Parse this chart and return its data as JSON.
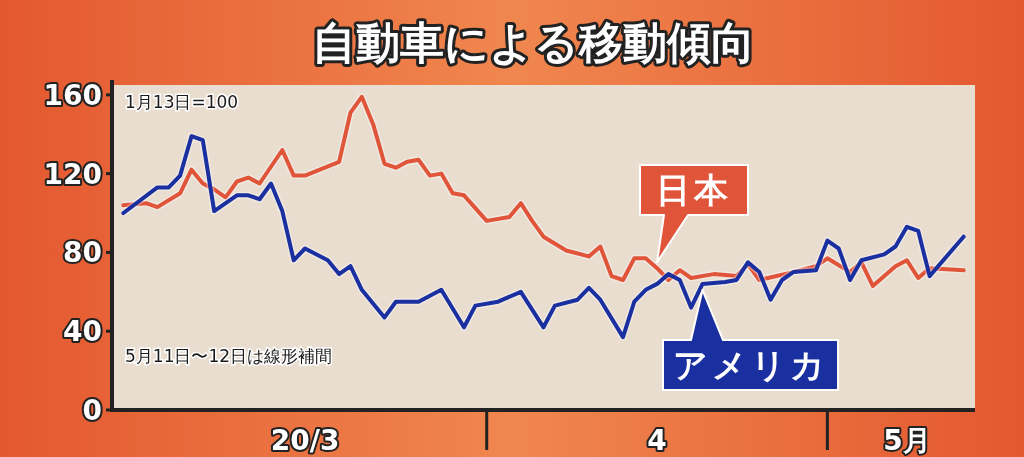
{
  "chart_data": {
    "type": "line",
    "title": "自動車による移動傾向",
    "annotations": [
      "1月13日=100",
      "5月11日〜12日は線形補間"
    ],
    "xlim": [
      "--02-28",
      "--05-14"
    ],
    "xticks": [
      {
        "value": "--03-16",
        "label": "20/3"
      },
      {
        "value": "--04-01",
        "label": null
      },
      {
        "value": "--04-16",
        "label": "4"
      },
      {
        "value": "--05-01",
        "label": null
      },
      {
        "value": "--05-08",
        "label": "5月"
      }
    ],
    "ylim": [
      0,
      165
    ],
    "yticks": [
      0,
      40,
      80,
      120,
      160
    ],
    "grid": false,
    "legend": false,
    "marker": "none",
    "line_style": "solid",
    "series": [
      {
        "name": "日本",
        "color": "#e0543a",
        "x": [
          "--02-29",
          "--03-02",
          "--03-03",
          "--03-05",
          "--03-06",
          "--03-07",
          "--03-08",
          "--03-09",
          "--03-10",
          "--03-11",
          "--03-12",
          "--03-14",
          "--03-15",
          "--03-16",
          "--03-19",
          "--03-20",
          "--03-21",
          "--03-22",
          "--03-23",
          "--03-24",
          "--03-25",
          "--03-26",
          "--03-27",
          "--03-28",
          "--03-29",
          "--03-30",
          "--04-01",
          "--04-03",
          "--04-04",
          "--04-05",
          "--04-06",
          "--04-08",
          "--04-10",
          "--04-11",
          "--04-12",
          "--04-13",
          "--04-14",
          "--04-15",
          "--04-16",
          "--04-17",
          "--04-18",
          "--04-19",
          "--04-21",
          "--04-23",
          "--04-24",
          "--04-25",
          "--04-28",
          "--04-30",
          "--05-01",
          "--05-03",
          "--05-04",
          "--05-05",
          "--05-07",
          "--05-08",
          "--05-09",
          "--05-10",
          "--05-13"
        ],
        "values": [
          104,
          105,
          103,
          110,
          122,
          115,
          112,
          108,
          116,
          118,
          115,
          132,
          119,
          119,
          126,
          151,
          159,
          145,
          125,
          123,
          126,
          127,
          119,
          120,
          110,
          109,
          96,
          98,
          105,
          96,
          88,
          81,
          78,
          83,
          68,
          66,
          77,
          77,
          72,
          66,
          71,
          67,
          69,
          68,
          74,
          66,
          70,
          73,
          77,
          70,
          75,
          63,
          73,
          76,
          67,
          72,
          71
        ]
      },
      {
        "name": "アメリカ",
        "color": "#1a2fa0",
        "x": [
          "--02-29",
          "--03-03",
          "--03-04",
          "--03-05",
          "--03-06",
          "--03-07",
          "--03-08",
          "--03-10",
          "--03-11",
          "--03-12",
          "--03-13",
          "--03-14",
          "--03-15",
          "--03-16",
          "--03-18",
          "--03-19",
          "--03-20",
          "--03-21",
          "--03-23",
          "--03-24",
          "--03-26",
          "--03-28",
          "--03-30",
          "--03-31",
          "--04-02",
          "--04-04",
          "--04-06",
          "--04-07",
          "--04-09",
          "--04-10",
          "--04-11",
          "--04-13",
          "--04-14",
          "--04-15",
          "--04-16",
          "--04-17",
          "--04-18",
          "--04-19",
          "--04-20",
          "--04-22",
          "--04-23",
          "--04-24",
          "--04-25",
          "--04-26",
          "--04-27",
          "--04-28",
          "--04-30",
          "--05-01",
          "--05-02",
          "--05-03",
          "--05-04",
          "--05-06",
          "--05-07",
          "--05-08",
          "--05-09",
          "--05-10",
          "--05-13"
        ],
        "values": [
          100,
          113,
          113,
          119,
          139,
          137,
          101,
          109,
          109,
          107,
          115,
          101,
          76,
          82,
          76,
          69,
          73,
          61,
          47,
          55,
          55,
          61,
          42,
          53,
          55,
          60,
          42,
          53,
          56,
          62,
          56,
          37,
          55,
          61,
          64,
          69,
          66,
          52,
          64,
          65,
          66,
          75,
          70,
          56,
          66,
          70,
          71,
          86,
          82,
          66,
          76,
          79,
          83,
          93,
          91,
          68,
          88
        ]
      }
    ]
  }
}
